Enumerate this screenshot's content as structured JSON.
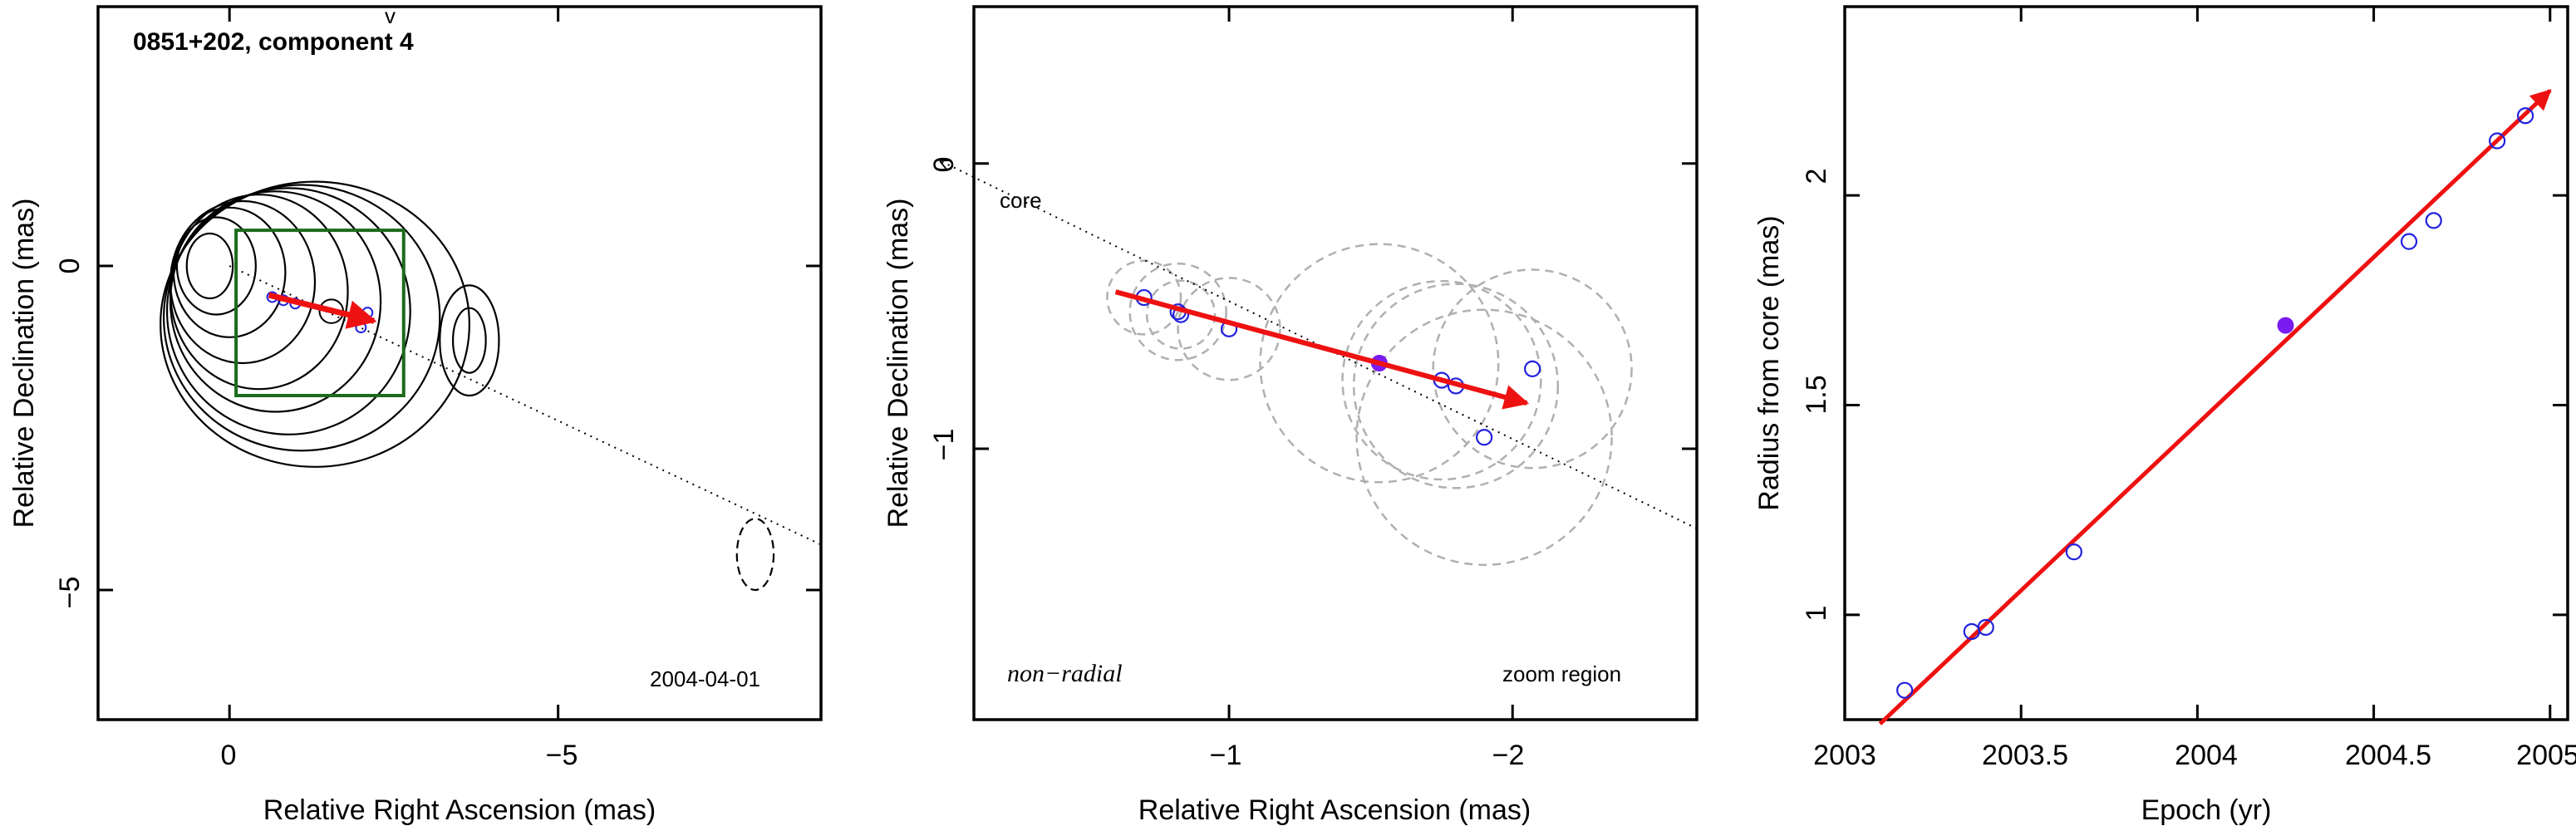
{
  "chart_data": [
    {
      "type": "contour",
      "title": "0851+202, component 4",
      "date_label": "2004-04-01",
      "xlabel": "Relative Right Ascension (mas)",
      "ylabel": "Relative Declination (mas)",
      "xlim": [
        2.0,
        -9.0
      ],
      "ylim": [
        -7.0,
        4.0
      ],
      "xticks": [
        0,
        -5
      ],
      "yticks": [
        0,
        -5
      ],
      "x_tick_labels": [
        "0",
        "−5"
      ],
      "y_tick_labels": [
        "0",
        "−5"
      ],
      "extra_mark": "v",
      "core_contours": [
        {
          "cx": 0.3,
          "cy": 0.0,
          "rx": 0.35,
          "ry": 0.5
        },
        {
          "cx": 0.2,
          "cy": 0.0,
          "rx": 0.6,
          "ry": 0.75
        },
        {
          "cx": 0.0,
          "cy": -0.1,
          "rx": 0.85,
          "ry": 1.0
        },
        {
          "cx": -0.2,
          "cy": -0.25,
          "rx": 1.1,
          "ry": 1.25
        },
        {
          "cx": -0.45,
          "cy": -0.4,
          "rx": 1.35,
          "ry": 1.5
        },
        {
          "cx": -0.7,
          "cy": -0.55,
          "rx": 1.6,
          "ry": 1.7
        },
        {
          "cx": -0.9,
          "cy": -0.7,
          "rx": 1.85,
          "ry": 1.9
        },
        {
          "cx": -1.1,
          "cy": -0.8,
          "rx": 2.1,
          "ry": 2.05
        },
        {
          "cx": -1.3,
          "cy": -0.9,
          "rx": 2.35,
          "ry": 2.2
        }
      ],
      "knot_contours": [
        {
          "cx": -3.65,
          "cy": -1.15,
          "rx": 0.25,
          "ry": 0.5
        },
        {
          "cx": -3.65,
          "cy": -1.15,
          "rx": 0.45,
          "ry": 0.85
        }
      ],
      "beam": {
        "cx": -8.0,
        "cy": -4.45,
        "rx": 0.28,
        "ry": 0.55
      },
      "component_circle": {
        "cx": -1.55,
        "cy": -0.7,
        "r": 0.18
      },
      "boxes": [
        {
          "x0": -0.1,
          "x1": -2.65,
          "y0": 0.55,
          "y1": -2.0
        },
        {
          "x0": -1.55,
          "x1": -1.55,
          "y0": 0.55,
          "y1": -2.0
        },
        {
          "x0": -0.1,
          "x1": -2.65,
          "y0": -0.7,
          "y1": -0.7
        }
      ],
      "core_line": {
        "x0": 0.0,
        "y0": 0.0,
        "x1": -9.0,
        "y1": -4.3
      },
      "arrow": {
        "x0": -0.6,
        "y0": -0.45,
        "x1": -2.2,
        "y1": -0.85
      },
      "points": [
        {
          "x": -0.65,
          "y": -0.48
        },
        {
          "x": -0.82,
          "y": -0.53
        },
        {
          "x": -1.0,
          "y": -0.58
        },
        {
          "x": -2.0,
          "y": -0.95
        },
        {
          "x": -2.1,
          "y": -0.72
        }
      ]
    },
    {
      "type": "scatter",
      "title": "",
      "label_left": "non−radial",
      "label_right": "zoom region",
      "core_label": "core",
      "xlabel": "Relative Right Ascension (mas)",
      "ylabel": "Relative Declination (mas)",
      "xlim": [
        -0.1,
        -2.65
      ],
      "ylim": [
        -1.95,
        0.55
      ],
      "xticks": [
        -1,
        -2
      ],
      "yticks": [
        0,
        -1
      ],
      "x_tick_labels": [
        "−1",
        "−2"
      ],
      "y_tick_labels": [
        "0",
        "−1"
      ],
      "core_line": {
        "x0": 0.0,
        "y0": 0.0,
        "x1": -2.65,
        "y1": -1.28
      },
      "arrow": {
        "x0": -0.6,
        "y0": -0.45,
        "x1": -2.05,
        "y1": -0.84
      },
      "points": [
        {
          "x": -0.7,
          "y": -0.47,
          "r": 0.13,
          "filled": false
        },
        {
          "x": -0.82,
          "y": -0.52,
          "r": 0.17,
          "filled": false
        },
        {
          "x": -0.83,
          "y": -0.53,
          "r": 0.12,
          "filled": false
        },
        {
          "x": -1.0,
          "y": -0.58,
          "r": 0.18,
          "filled": false
        },
        {
          "x": -1.53,
          "y": -0.7,
          "r": 0.42,
          "filled": true
        },
        {
          "x": -1.75,
          "y": -0.76,
          "r": 0.35,
          "filled": false
        },
        {
          "x": -1.8,
          "y": -0.78,
          "r": 0.36,
          "filled": false
        },
        {
          "x": -1.9,
          "y": -0.96,
          "r": 0.45,
          "filled": false
        },
        {
          "x": -2.07,
          "y": -0.72,
          "r": 0.35,
          "filled": false
        }
      ]
    },
    {
      "type": "scatter",
      "title": "",
      "xlabel": "Epoch (yr)",
      "ylabel": "Radius from core (mas)",
      "xlim": [
        2003.0,
        2005.05
      ],
      "ylim": [
        0.75,
        2.45
      ],
      "xticks": [
        2003,
        2003.5,
        2004,
        2004.5,
        2005
      ],
      "yticks": [
        1,
        1.5,
        2
      ],
      "x_tick_labels": [
        "2003",
        "2003.5",
        "2004",
        "2004.5",
        "2005"
      ],
      "y_tick_labels": [
        "1",
        "1.5",
        "2"
      ],
      "fit_line": {
        "x0": 2003.1,
        "y0": 0.74,
        "x1": 2005.0,
        "y1": 2.25
      },
      "points": [
        {
          "x": 2003.17,
          "y": 0.82,
          "filled": false
        },
        {
          "x": 2003.36,
          "y": 0.96,
          "filled": false
        },
        {
          "x": 2003.4,
          "y": 0.97,
          "filled": false
        },
        {
          "x": 2003.65,
          "y": 1.15,
          "filled": false
        },
        {
          "x": 2004.25,
          "y": 1.69,
          "filled": true
        },
        {
          "x": 2004.6,
          "y": 1.89,
          "filled": false
        },
        {
          "x": 2004.67,
          "y": 1.94,
          "filled": false
        },
        {
          "x": 2004.85,
          "y": 2.13,
          "filled": false
        },
        {
          "x": 2004.93,
          "y": 2.19,
          "filled": false
        }
      ]
    }
  ],
  "colors": {
    "arrow": "#ee1111",
    "fit_line": "#ee1111",
    "points": "#2222dd",
    "filled_point": "#7a1bf0",
    "box": "#1b6b1b",
    "gray_circle": "#b0b0b0"
  }
}
